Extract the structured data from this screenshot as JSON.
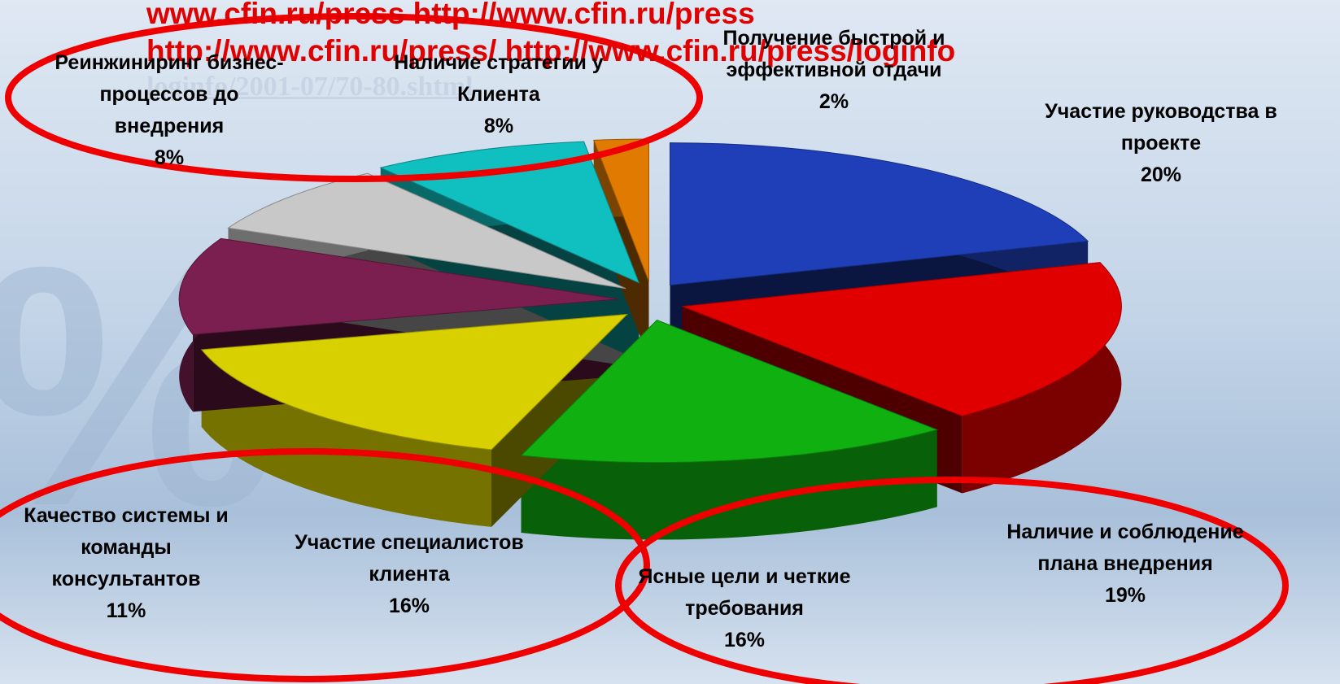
{
  "chart_data": {
    "type": "pie3d",
    "categories": [
      "Участие руководства в проекте",
      "Наличие и соблюдение плана внедрения",
      "Ясные цели и четкие требования",
      "Участие специалистов клиента",
      "Качество системы и команды консультантов",
      "Реинжиниринг бизнес-процессов до внедрения",
      "Наличие стратегии у Клиента",
      "Получение быстрой и эффективной отдачи"
    ],
    "values": [
      20,
      19,
      16,
      16,
      11,
      8,
      8,
      2
    ],
    "value_labels": [
      "20%",
      "19%",
      "16%",
      "16%",
      "11%",
      "8%",
      "8%",
      "2%"
    ],
    "colors": [
      "#1f3fb8",
      "#e00000",
      "#10b010",
      "#d8d000",
      "#7a1f4f",
      "#c8c8c8",
      "#10c0c0",
      "#e07a00"
    ],
    "annotations": [
      "www.cfin.ru/press http://www.cfin.ru/press http://www.cfin.ru/press/ http://www.cfin.ru/press/loginfo",
      "loginfo/2001-07/70-80.shtml"
    ]
  }
}
